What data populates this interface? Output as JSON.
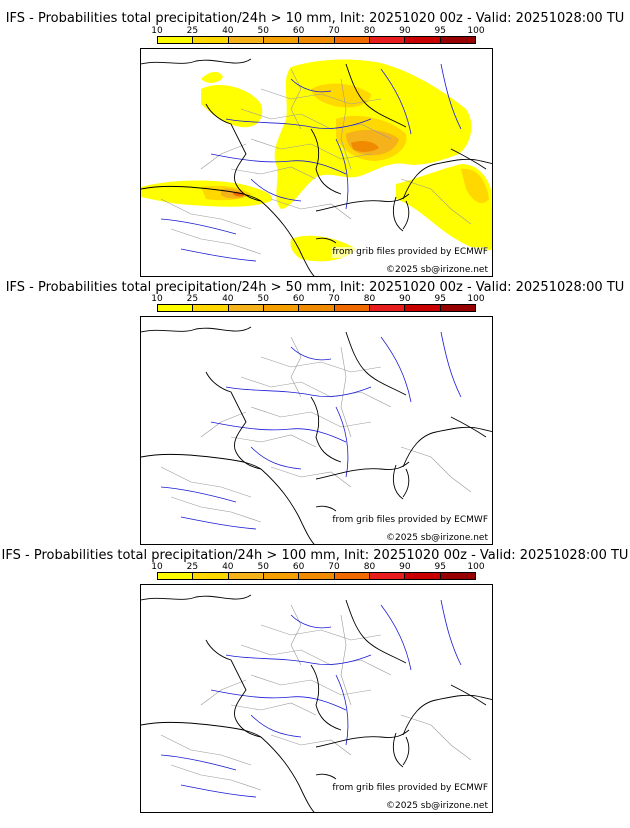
{
  "colors": {
    "scale": [
      "#ffff00",
      "#ffd800",
      "#f5b21a",
      "#f5a000",
      "#f08a00",
      "#f06a00",
      "#e81e1e",
      "#c80000",
      "#960000",
      "#5a0000"
    ],
    "rivers": "#1a1ad6",
    "borders": "#000000",
    "regions": "#9a9a9a",
    "sea": "#ffffff"
  },
  "colorbar_ticks": [
    "10",
    "25",
    "40",
    "50",
    "60",
    "70",
    "80",
    "90",
    "95",
    "100"
  ],
  "panels": [
    {
      "title": "IFS - Probabilities total precipitation/24h > 10 mm, Init: 20251020 00z - Valid: 20251028:00 TU",
      "credit_source": "from grib files provided by ECMWF",
      "credit_copyright": "©2025 sb@irizone.net"
    },
    {
      "title": "IFS - Probabilities total precipitation/24h > 50 mm, Init: 20251020 00z - Valid: 20251028:00 TU",
      "credit_source": "from grib files provided by ECMWF",
      "credit_copyright": "©2025 sb@irizone.net"
    },
    {
      "title": "IFS - Probabilities total precipitation/24h > 100 mm, Init: 20251020 00z - Valid: 20251028:00 TU",
      "credit_source": "from grib files provided by ECMWF",
      "credit_copyright": "©2025 sb@irizone.net"
    }
  ]
}
